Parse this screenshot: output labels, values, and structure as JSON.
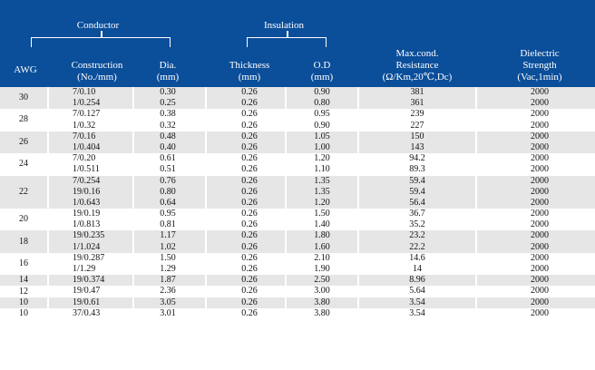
{
  "header": {
    "conductor": "Conductor",
    "insulation": "Insulation",
    "awg": "AWG",
    "construction": [
      "Construction",
      "(No./mm)"
    ],
    "dia": [
      "Dia.",
      "(mm)"
    ],
    "thickness": [
      "Thickness",
      "(mm)"
    ],
    "od": [
      "O.D",
      "(mm)"
    ],
    "resistance": [
      "Max.cond.",
      "Resistance",
      "(Ω/Km,20℃,Dc)"
    ],
    "dielectric": [
      "Dielectric",
      "Strength",
      "(Vac,1min)"
    ]
  },
  "groups": [
    {
      "awg": "30",
      "rows": [
        {
          "construction": "7/0.10",
          "dia": "0.30",
          "thickness": "0.26",
          "od": "0.90",
          "resistance": "381",
          "dielectric": "2000"
        },
        {
          "construction": "1/0.254",
          "dia": "0.25",
          "thickness": "0.26",
          "od": "0.80",
          "resistance": "361",
          "dielectric": "2000"
        }
      ]
    },
    {
      "awg": "28",
      "rows": [
        {
          "construction": "7/0.127",
          "dia": "0.38",
          "thickness": "0.26",
          "od": "0.95",
          "resistance": "239",
          "dielectric": "2000"
        },
        {
          "construction": "1/0.32",
          "dia": "0.32",
          "thickness": "0.26",
          "od": "0.90",
          "resistance": "227",
          "dielectric": "2000"
        }
      ]
    },
    {
      "awg": "26",
      "rows": [
        {
          "construction": "7/0.16",
          "dia": "0.48",
          "thickness": "0.26",
          "od": "1.05",
          "resistance": "150",
          "dielectric": "2000"
        },
        {
          "construction": "1/0.404",
          "dia": "0.40",
          "thickness": "0.26",
          "od": "1.00",
          "resistance": "143",
          "dielectric": "2000"
        }
      ]
    },
    {
      "awg": "24",
      "rows": [
        {
          "construction": "7/0.20",
          "dia": "0.61",
          "thickness": "0.26",
          "od": "1.20",
          "resistance": "94.2",
          "dielectric": "2000"
        },
        {
          "construction": "1/0.511",
          "dia": "0.51",
          "thickness": "0.26",
          "od": "1.10",
          "resistance": "89.3",
          "dielectric": "2000"
        }
      ]
    },
    {
      "awg": "22",
      "rows": [
        {
          "construction": "7/0.254",
          "dia": "0.76",
          "thickness": "0.26",
          "od": "1.35",
          "resistance": "59.4",
          "dielectric": "2000"
        },
        {
          "construction": "19/0.16",
          "dia": "0.80",
          "thickness": "0.26",
          "od": "1.35",
          "resistance": "59.4",
          "dielectric": "2000"
        },
        {
          "construction": "1/0.643",
          "dia": "0.64",
          "thickness": "0.26",
          "od": "1.20",
          "resistance": "56.4",
          "dielectric": "2000"
        }
      ]
    },
    {
      "awg": "20",
      "rows": [
        {
          "construction": "19/0.19",
          "dia": "0.95",
          "thickness": "0.26",
          "od": "1.50",
          "resistance": "36.7",
          "dielectric": "2000"
        },
        {
          "construction": "1/0.813",
          "dia": "0.81",
          "thickness": "0.26",
          "od": "1.40",
          "resistance": "35.2",
          "dielectric": "2000"
        }
      ]
    },
    {
      "awg": "18",
      "rows": [
        {
          "construction": "19/0.235",
          "dia": "1.17",
          "thickness": "0.26",
          "od": "1.80",
          "resistance": "23.2",
          "dielectric": "2000"
        },
        {
          "construction": "1/1.024",
          "dia": "1.02",
          "thickness": "0.26",
          "od": "1.60",
          "resistance": "22.2",
          "dielectric": "2000"
        }
      ]
    },
    {
      "awg": "16",
      "rows": [
        {
          "construction": "19/0.287",
          "dia": "1.50",
          "thickness": "0.26",
          "od": "2.10",
          "resistance": "14.6",
          "dielectric": "2000"
        },
        {
          "construction": "1/1.29",
          "dia": "1.29",
          "thickness": "0.26",
          "od": "1.90",
          "resistance": "14",
          "dielectric": "2000"
        }
      ]
    },
    {
      "awg": "14",
      "rows": [
        {
          "construction": "19/0.374",
          "dia": "1.87",
          "thickness": "0.26",
          "od": "2.50",
          "resistance": "8.96",
          "dielectric": "2000"
        }
      ]
    },
    {
      "awg": "12",
      "rows": [
        {
          "construction": "19/0.47",
          "dia": "2.36",
          "thickness": "0.26",
          "od": "3.00",
          "resistance": "5.64",
          "dielectric": "2000"
        }
      ]
    },
    {
      "awg": "10",
      "rows": [
        {
          "construction": "19/0.61",
          "dia": "3.05",
          "thickness": "0.26",
          "od": "3.80",
          "resistance": "3.54",
          "dielectric": "2000"
        }
      ]
    },
    {
      "awg": "10",
      "rows": [
        {
          "construction": "37/0.43",
          "dia": "3.01",
          "thickness": "0.26",
          "od": "3.80",
          "resistance": "3.54",
          "dielectric": "2000"
        }
      ]
    }
  ]
}
